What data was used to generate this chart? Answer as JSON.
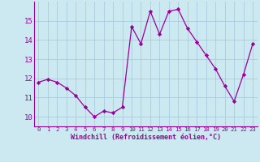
{
  "x": [
    0,
    1,
    2,
    3,
    4,
    5,
    6,
    7,
    8,
    9,
    10,
    11,
    12,
    13,
    14,
    15,
    16,
    17,
    18,
    19,
    20,
    21,
    22,
    23
  ],
  "y": [
    11.8,
    11.95,
    11.8,
    11.5,
    11.1,
    10.5,
    10.0,
    10.3,
    10.2,
    10.5,
    14.7,
    13.8,
    15.5,
    14.3,
    15.5,
    15.6,
    14.6,
    13.9,
    13.2,
    12.5,
    11.6,
    10.8,
    12.2,
    13.8
  ],
  "line_color": "#990099",
  "marker": "D",
  "marker_size": 2.2,
  "bg_color": "#cce8f0",
  "grid_color": "#aaccdd",
  "xlabel": "Windchill (Refroidissement éolien,°C)",
  "ylim": [
    9.5,
    16.0
  ],
  "xlim": [
    -0.5,
    23.5
  ],
  "yticks": [
    10,
    11,
    12,
    13,
    14,
    15
  ],
  "xticks": [
    0,
    1,
    2,
    3,
    4,
    5,
    6,
    7,
    8,
    9,
    10,
    11,
    12,
    13,
    14,
    15,
    16,
    17,
    18,
    19,
    20,
    21,
    22,
    23
  ],
  "tick_color": "#990099",
  "label_color": "#990099",
  "spine_color": "#990099",
  "xlabel_fontsize": 6.0,
  "ytick_fontsize": 6.5,
  "xtick_fontsize": 5.2
}
